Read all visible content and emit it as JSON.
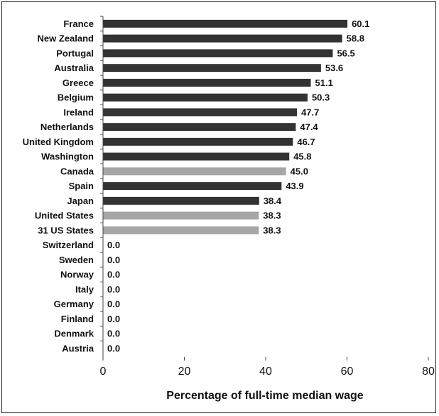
{
  "chart_data": {
    "type": "bar",
    "orientation": "horizontal",
    "categories": [
      "France",
      "New Zealand",
      "Portugal",
      "Australia",
      "Greece",
      "Belgium",
      "Ireland",
      "Netherlands",
      "United Kingdom",
      "Washington",
      "Canada",
      "Spain",
      "Japan",
      "United States",
      "31 US States",
      "Switzerland",
      "Sweden",
      "Norway",
      "Italy",
      "Germany",
      "Finland",
      "Denmark",
      "Austria"
    ],
    "values": [
      60.1,
      58.8,
      56.5,
      53.6,
      51.1,
      50.3,
      47.7,
      47.4,
      46.7,
      45.8,
      45.0,
      43.9,
      38.4,
      38.3,
      38.3,
      0.0,
      0.0,
      0.0,
      0.0,
      0.0,
      0.0,
      0.0,
      0.0
    ],
    "value_labels": [
      "60.1",
      "58.8",
      "56.5",
      "53.6",
      "51.1",
      "50.3",
      "47.7",
      "47.4",
      "46.7",
      "45.8",
      "45.0",
      "43.9",
      "38.4",
      "38.3",
      "38.3",
      "0.0",
      "0.0",
      "0.0",
      "0.0",
      "0.0",
      "0.0",
      "0.0",
      "0.0"
    ],
    "highlighted_categories": [
      "Canada",
      "United States",
      "31 US States"
    ],
    "colors": {
      "default": "#333333",
      "highlight": "#a6a6a6"
    },
    "xlabel": "Percentage of full-time median wage",
    "ylabel": "",
    "title": "",
    "xlim": [
      0,
      80
    ],
    "xticks": [
      0,
      20,
      40,
      60,
      80
    ],
    "xtick_labels": [
      "0",
      "20",
      "40",
      "60",
      "80"
    ],
    "grid": false
  }
}
